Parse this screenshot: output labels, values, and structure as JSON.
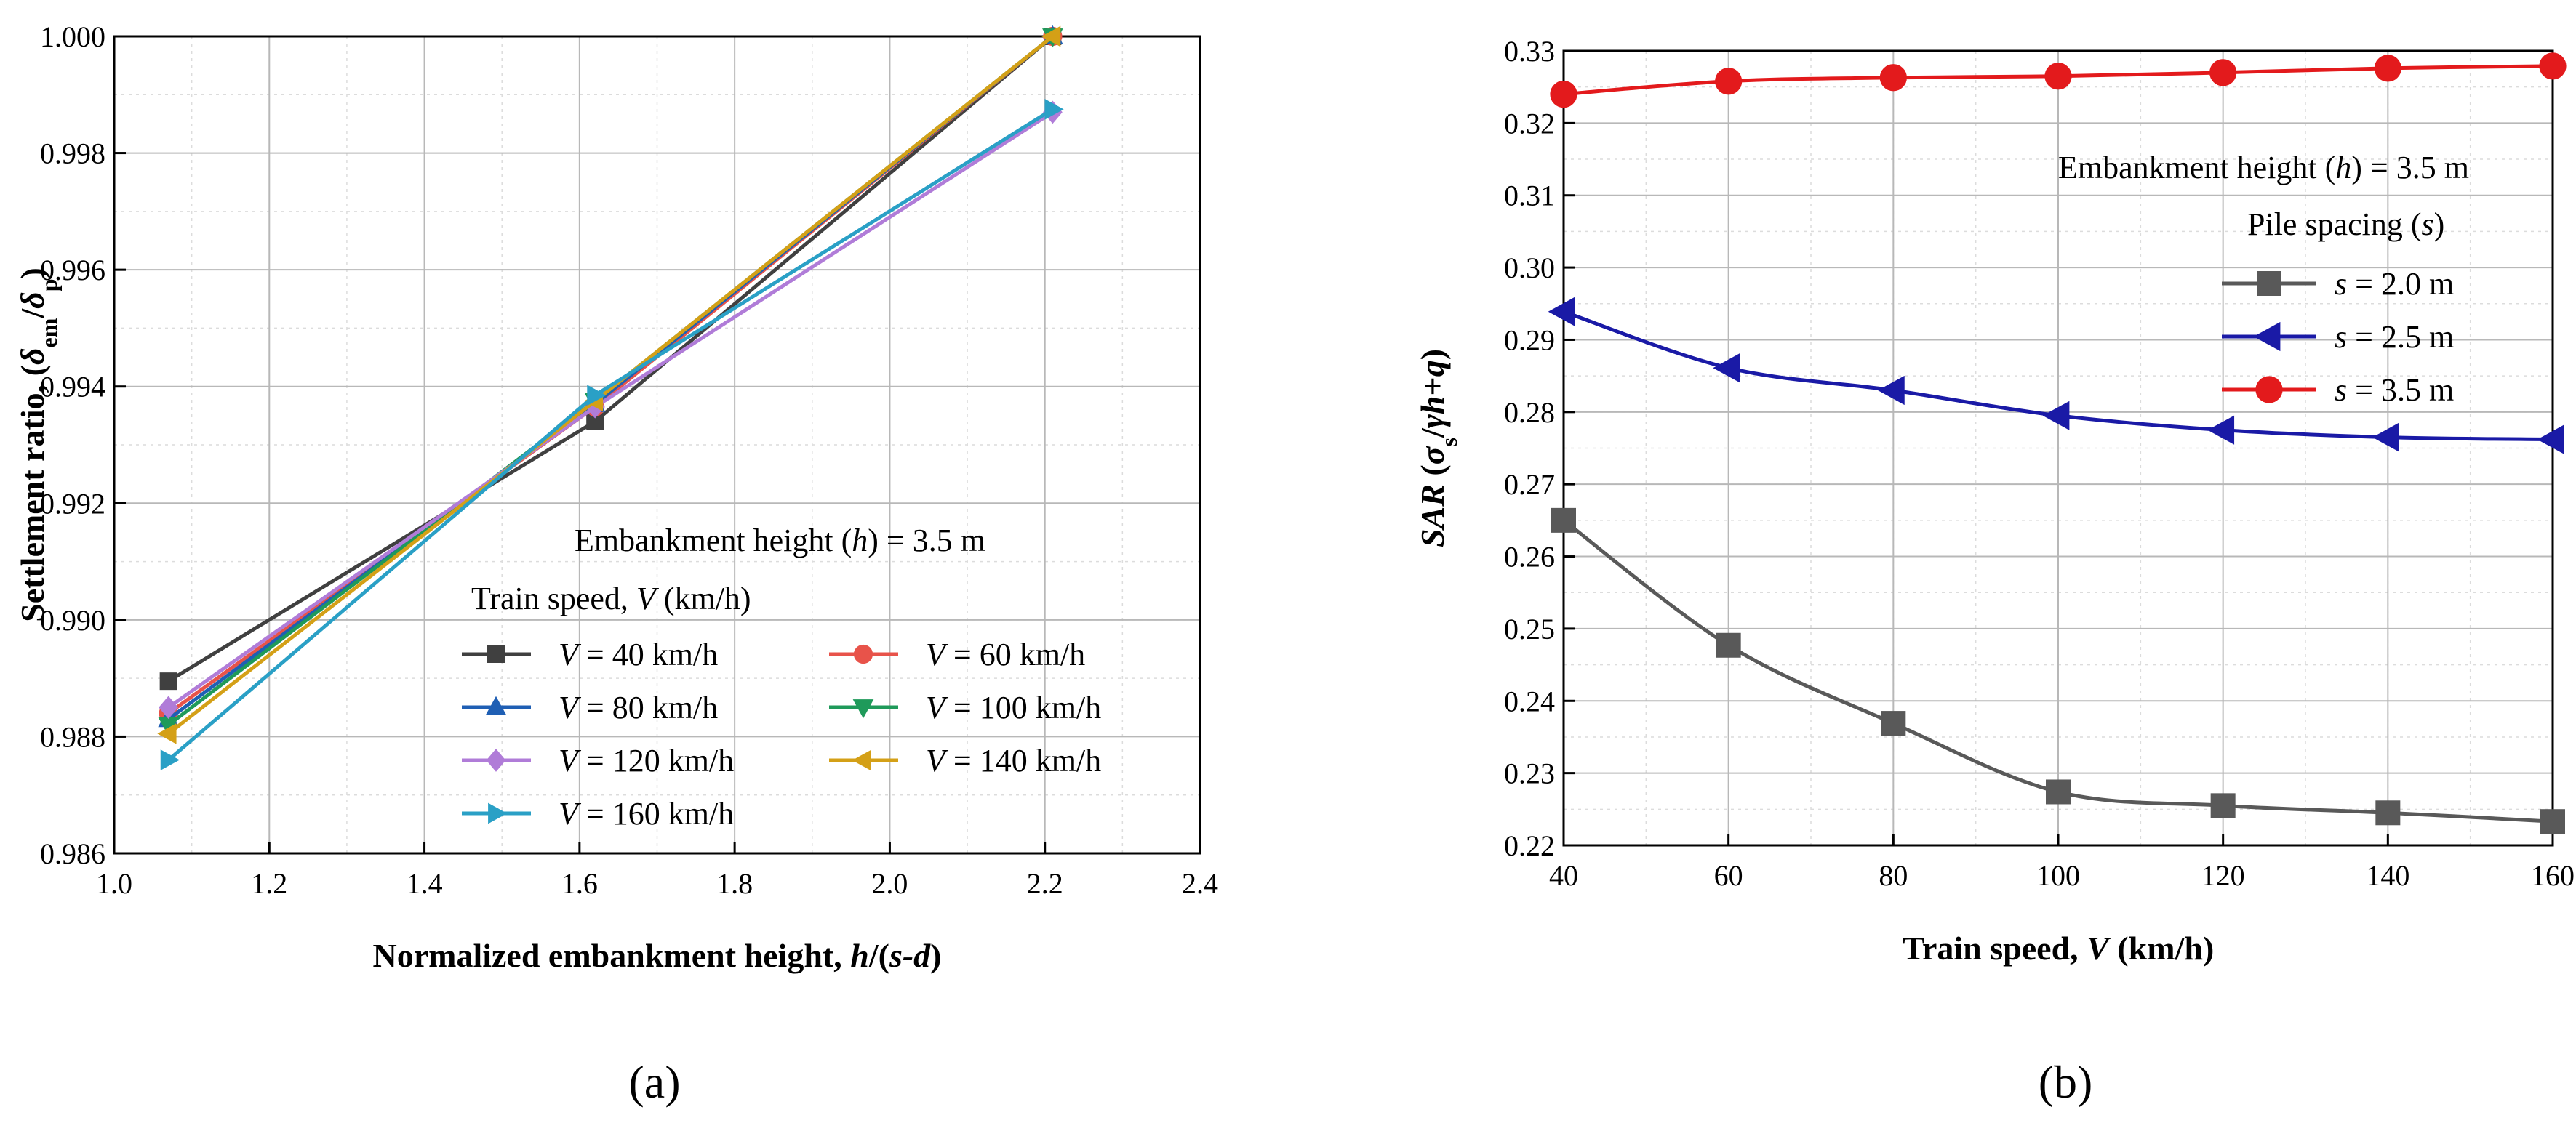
{
  "chart_data": [
    {
      "type": "line",
      "panel_label": "(a)",
      "xlabel": "Normalized embankment height, h/(s-d)",
      "ylabel": "Settlement ratio, (δem/δp)",
      "xlim": [
        1.0,
        2.4
      ],
      "ylim": [
        0.986,
        1.0
      ],
      "xticks": [
        "1.0",
        "1.2",
        "1.4",
        "1.6",
        "1.8",
        "2.0",
        "2.2",
        "2.4"
      ],
      "yticks": [
        "0.986",
        "0.988",
        "0.990",
        "0.992",
        "0.994",
        "0.996",
        "0.998",
        "1.000"
      ],
      "grid": true,
      "annotation": "Embankment height (h) = 3.5 m",
      "legend_title": "Train speed, V (km/h)",
      "x": [
        1.07,
        1.62,
        2.21
      ],
      "series": [
        {
          "name": "V = 40 km/h",
          "color": "#404040",
          "marker": "square",
          "values": [
            0.98895,
            0.9934,
            1.0
          ]
        },
        {
          "name": "V = 60 km/h",
          "color": "#e8534a",
          "marker": "circle",
          "values": [
            0.9884,
            0.99365,
            1.0
          ]
        },
        {
          "name": "V = 80 km/h",
          "color": "#1f5fb4",
          "marker": "triangle-up",
          "values": [
            0.9883,
            0.9937,
            1.0
          ]
        },
        {
          "name": "V = 100 km/h",
          "color": "#1f9a5a",
          "marker": "triangle-down",
          "values": [
            0.9882,
            0.99375,
            1.0
          ]
        },
        {
          "name": "V = 120 km/h",
          "color": "#b07cd8",
          "marker": "diamond",
          "values": [
            0.9885,
            0.99365,
            0.9987
          ]
        },
        {
          "name": "V = 140 km/h",
          "color": "#d4a017",
          "marker": "triangle-left",
          "values": [
            0.98805,
            0.99375,
            1.0
          ]
        },
        {
          "name": "V = 160 km/h",
          "color": "#2aa0c6",
          "marker": "triangle-right",
          "values": [
            0.9876,
            0.99385,
            0.99875
          ]
        }
      ]
    },
    {
      "type": "line",
      "panel_label": "(b)",
      "xlabel": "Train speed, V (km/h)",
      "ylabel": "SAR (σs/γh+q)",
      "xlim": [
        40,
        160
      ],
      "ylim": [
        0.22,
        0.33
      ],
      "xticks": [
        "40",
        "60",
        "80",
        "100",
        "120",
        "140",
        "160"
      ],
      "yticks": [
        "0.22",
        "0.23",
        "0.24",
        "0.25",
        "0.26",
        "0.27",
        "0.28",
        "0.29",
        "0.30",
        "0.31",
        "0.32",
        "0.33"
      ],
      "grid": true,
      "annotation": "Embankment height (h) = 3.5 m",
      "legend_title": "Pile spacing (s)",
      "x": [
        40,
        60,
        80,
        100,
        120,
        140,
        160
      ],
      "series": [
        {
          "name": "s = 2.0 m",
          "color": "#595959",
          "marker": "square",
          "values": [
            0.265,
            0.2477,
            0.2369,
            0.2274,
            0.2255,
            0.2245,
            0.2233
          ]
        },
        {
          "name": "s = 2.5 m",
          "color": "#1a1aa6",
          "marker": "triangle-left",
          "values": [
            0.2939,
            0.2861,
            0.283,
            0.2795,
            0.2775,
            0.2765,
            0.2762
          ]
        },
        {
          "name": "s = 3.5 m",
          "color": "#e31a1c",
          "marker": "circle",
          "values": [
            0.324,
            0.3258,
            0.3263,
            0.3265,
            0.327,
            0.3276,
            0.3279
          ]
        }
      ]
    }
  ]
}
